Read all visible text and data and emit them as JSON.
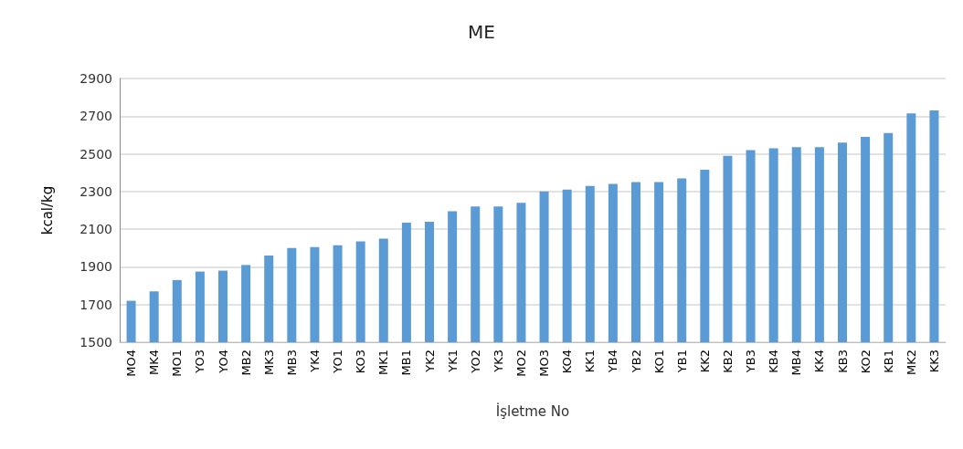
{
  "chart_data": {
    "type": "bar",
    "title": "ME",
    "xlabel": "İşletme No",
    "ylabel": "kcal/kg",
    "categories": [
      "MO4",
      "MK4",
      "MO1",
      "YO3",
      "YO4",
      "MB2",
      "MK3",
      "MB3",
      "YK4",
      "YO1",
      "KO3",
      "MK1",
      "MB1",
      "YK2",
      "YK1",
      "YO2",
      "YK3",
      "MO2",
      "MO3",
      "KO4",
      "KK1",
      "YB4",
      "YB2",
      "KO1",
      "YB1",
      "KK2",
      "KB2",
      "YB3",
      "KB4",
      "MB4",
      "KK4",
      "KB3",
      "KO2",
      "KB1",
      "MK2",
      "KK3"
    ],
    "values": [
      1720,
      1770,
      1830,
      1875,
      1880,
      1910,
      1960,
      2000,
      2005,
      2015,
      2035,
      2050,
      2135,
      2140,
      2195,
      2220,
      2220,
      2240,
      2300,
      2310,
      2330,
      2340,
      2350,
      2350,
      2370,
      2415,
      2490,
      2520,
      2530,
      2535,
      2535,
      2560,
      2590,
      2610,
      2715,
      2730
    ],
    "color": "#5b9bd5",
    "ylim": [
      1500,
      2900
    ],
    "yticks": [
      1500,
      1700,
      1900,
      2100,
      2300,
      2500,
      2700,
      2900
    ],
    "grid": "y"
  }
}
